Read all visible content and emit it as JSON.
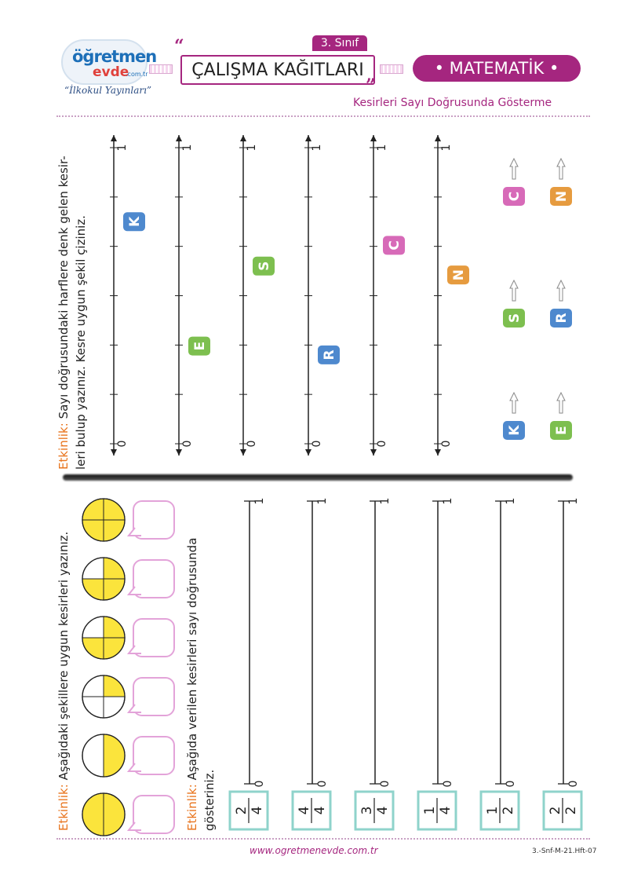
{
  "header": {
    "logo_line1": "öğretmen",
    "logo_line2": "evde",
    "logo_domain": ".com.tr",
    "logo_tagline": "“İlkokul Yayınları”",
    "grade": "3. Sınıf",
    "title": "ÇALIŞMA KAĞITLARI",
    "subject": "• MATEMATİK •",
    "topic": "Kesirleri Sayı Doğrusunda Gösterme"
  },
  "activity1": {
    "label": "Etkinlik:",
    "text_line1": " Sayı doğrusundaki harflere denk gelen kesir-",
    "text_line2": "leri bulup yazınız. Kesre uygun şekil çiziniz.",
    "lines": [
      {
        "letter": "K",
        "color": "#3b7cc9",
        "pos": 0.75,
        "end_label": "1",
        "start_label": "0"
      },
      {
        "letter": "E",
        "color": "#6fb83c",
        "pos": 0.33,
        "end_label": "1",
        "start_label": "0"
      },
      {
        "letter": "S",
        "color": "#6fb83c",
        "pos": 0.6,
        "end_label": "1",
        "start_label": "0"
      },
      {
        "letter": "R",
        "color": "#3b7cc9",
        "pos": 0.3,
        "end_label": "1",
        "start_label": "0"
      },
      {
        "letter": "C",
        "color": "#d35ab0",
        "pos": 0.67,
        "end_label": "1",
        "start_label": "0"
      },
      {
        "letter": "N",
        "color": "#e3902a",
        "pos": 0.57,
        "end_label": "1",
        "start_label": "0"
      }
    ],
    "answer_letters": [
      [
        "C",
        "N"
      ],
      [
        "S",
        "R"
      ],
      [
        "K",
        "E"
      ]
    ],
    "answer_colors": {
      "C": "#d35ab0",
      "N": "#e3902a",
      "S": "#6fb83c",
      "R": "#3b7cc9",
      "K": "#3b7cc9",
      "E": "#6fb83c"
    }
  },
  "activity2": {
    "label": "Etkinlik:",
    "text": " Aşağıdaki şekillere uygun kesirleri yazınız.",
    "circles": [
      {
        "parts": 4,
        "filled": 4
      },
      {
        "parts": 4,
        "filled": 3
      },
      {
        "parts": 4,
        "filled": 3
      },
      {
        "parts": 4,
        "filled": 1
      },
      {
        "parts": 2,
        "filled": 1
      },
      {
        "parts": 2,
        "filled": 2
      }
    ]
  },
  "activity3": {
    "label": "Etkinlik:",
    "text_line1": " Aşağıda verilen kesirleri sayı doğrusunda",
    "text_line2": "gösteriniz.",
    "end_label": "1",
    "start_label": "0",
    "fractions": [
      {
        "num": "2",
        "den": "4"
      },
      {
        "num": "4",
        "den": "4"
      },
      {
        "num": "3",
        "den": "4"
      },
      {
        "num": "1",
        "den": "4"
      },
      {
        "num": "1",
        "den": "2"
      },
      {
        "num": "2",
        "den": "2"
      }
    ]
  },
  "footer": {
    "url": "www.ogretmenevde.com.tr",
    "code": "3.-Snf-M-21.Hft-07"
  },
  "colors": {
    "brand": "#a5267f",
    "accent_orange": "#e8741d",
    "fill_yellow": "#fbe43c",
    "box_teal": "#8fd3cb",
    "speech_pink": "#e3a3d9"
  }
}
